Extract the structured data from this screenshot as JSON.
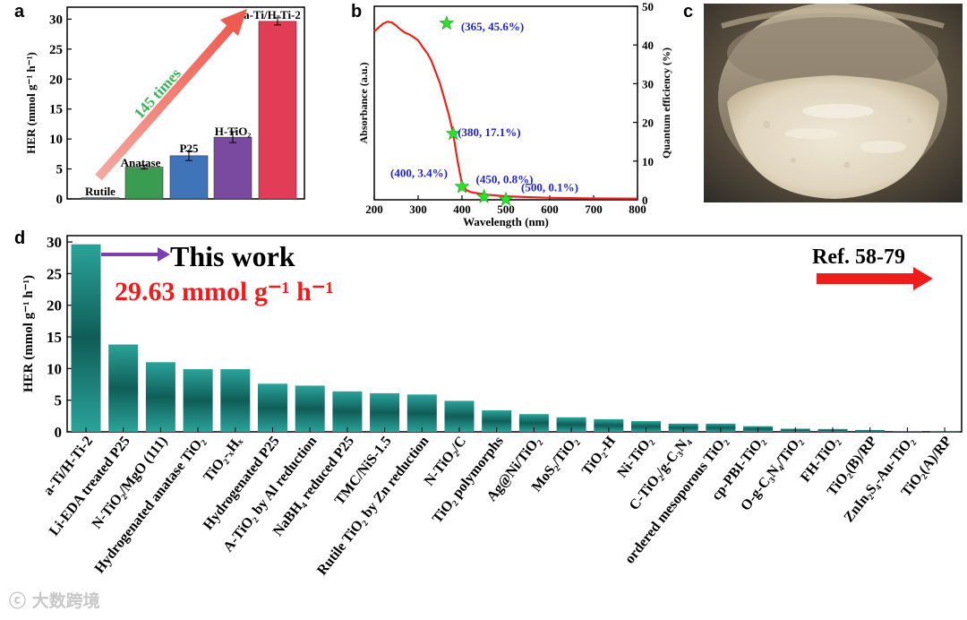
{
  "panels": {
    "a": "a",
    "b": "b",
    "c": "c",
    "d": "d"
  },
  "watermark": "ⓒ 大数跨境",
  "chart_data": [
    {
      "id": "a",
      "type": "bar",
      "categories": [
        "Rutile",
        "Anatase",
        "P25",
        "H-TiO₂",
        "a-Ti/H-Ti-2"
      ],
      "values": [
        0.2,
        5.3,
        7.2,
        10.3,
        29.63
      ],
      "errors": [
        0,
        0.3,
        0.8,
        0.9,
        0.6
      ],
      "colors": [
        "#3a9c50",
        "#3a9c50",
        "#3f74b8",
        "#7a4aa0",
        "#e23d57"
      ],
      "ylabel": "HER (mmol g⁻¹ h⁻¹)",
      "yticks": [
        0,
        5,
        10,
        15,
        20,
        25,
        30
      ],
      "ylim": [
        0,
        32
      ],
      "annotation": "145 times"
    },
    {
      "id": "b",
      "type": "line",
      "xlabel": "Wavelength (nm)",
      "ylabel_left": "Absorbance (a.u.)",
      "ylabel_right": "Quantum efficiency (%)",
      "xticks": [
        200,
        300,
        400,
        500,
        600,
        700,
        800
      ],
      "xlim": [
        200,
        800
      ],
      "yticks_right": [
        0,
        10,
        20,
        30,
        40,
        50
      ],
      "ylim_right": [
        0,
        50
      ],
      "absorbance": [
        [
          200,
          43.5
        ],
        [
          210,
          44.5
        ],
        [
          220,
          45.5
        ],
        [
          230,
          46
        ],
        [
          240,
          45.8
        ],
        [
          250,
          45
        ],
        [
          260,
          44
        ],
        [
          270,
          43.2
        ],
        [
          280,
          42.7
        ],
        [
          290,
          42
        ],
        [
          300,
          41.2
        ],
        [
          310,
          39.5
        ],
        [
          320,
          38
        ],
        [
          330,
          36
        ],
        [
          340,
          33
        ],
        [
          350,
          30
        ],
        [
          360,
          26
        ],
        [
          370,
          22
        ],
        [
          380,
          17
        ],
        [
          390,
          10
        ],
        [
          400,
          4
        ],
        [
          410,
          2.5
        ],
        [
          420,
          2
        ],
        [
          440,
          1.6
        ],
        [
          460,
          1.3
        ],
        [
          480,
          1.1
        ],
        [
          500,
          0.9
        ],
        [
          550,
          0.7
        ],
        [
          600,
          0.5
        ],
        [
          700,
          0.35
        ],
        [
          800,
          0.3
        ]
      ],
      "quantum_efficiency": [
        [
          365,
          45.6
        ],
        [
          380,
          17.1
        ],
        [
          400,
          3.4
        ],
        [
          450,
          0.8
        ],
        [
          500,
          0.1
        ]
      ],
      "point_labels": [
        "(365, 45.6%)",
        "(380, 17.1%)",
        "(400, 3.4%)",
        "(450, 0.8%)",
        "(500, 0.1%)"
      ]
    },
    {
      "id": "d",
      "type": "bar",
      "ylabel": "HER (mmol g⁻¹ h⁻¹)",
      "yticks": [
        0,
        5,
        10,
        15,
        20,
        25,
        30
      ],
      "ylim": [
        0,
        31
      ],
      "annotation_this_work": "This work",
      "annotation_value": "29.63 mmol g⁻¹ h⁻¹",
      "annotation_ref": "Ref. 58-79",
      "categories": [
        "a-Ti/H-Ti-2",
        "Li-EDA treated P25",
        "N-TiO₂/MgO (111)",
        "Hydrogenated anatase TiO₂",
        "TiO₂-ₓHₓ",
        "Hydrogenated P25",
        "A-TiO₂ by Al reduction",
        "NaBH₄ reduced P25",
        "TMC/NiS-1.5",
        "Rutile TiO₂ by Zn reduction",
        "N-TiO₂/C",
        "TiO₂ polymorphs",
        "Ag@Ni/TiO₂",
        "MoS₂/TiO₂",
        "TiO₂-H",
        "Ni-TiO₂",
        "C-TiO₂/g-C₃N₄",
        "ordered mesoporous TiO₂",
        "cp-PBI-TiO₂",
        "O-g-C₃N₄/TiO₂",
        "FH-TiO₂",
        "TiO₂(B)/RP",
        "ZnIn₂S₄-Au-TiO₂",
        "TiO₂(A)/RP"
      ],
      "values": [
        29.63,
        13.8,
        11.0,
        9.9,
        9.9,
        7.6,
        7.3,
        6.4,
        6.1,
        5.9,
        4.9,
        3.4,
        2.8,
        2.3,
        2.0,
        1.7,
        1.3,
        1.3,
        0.9,
        0.5,
        0.45,
        0.3,
        0.1,
        0.05
      ],
      "bar_color": "#1e8a82"
    }
  ]
}
